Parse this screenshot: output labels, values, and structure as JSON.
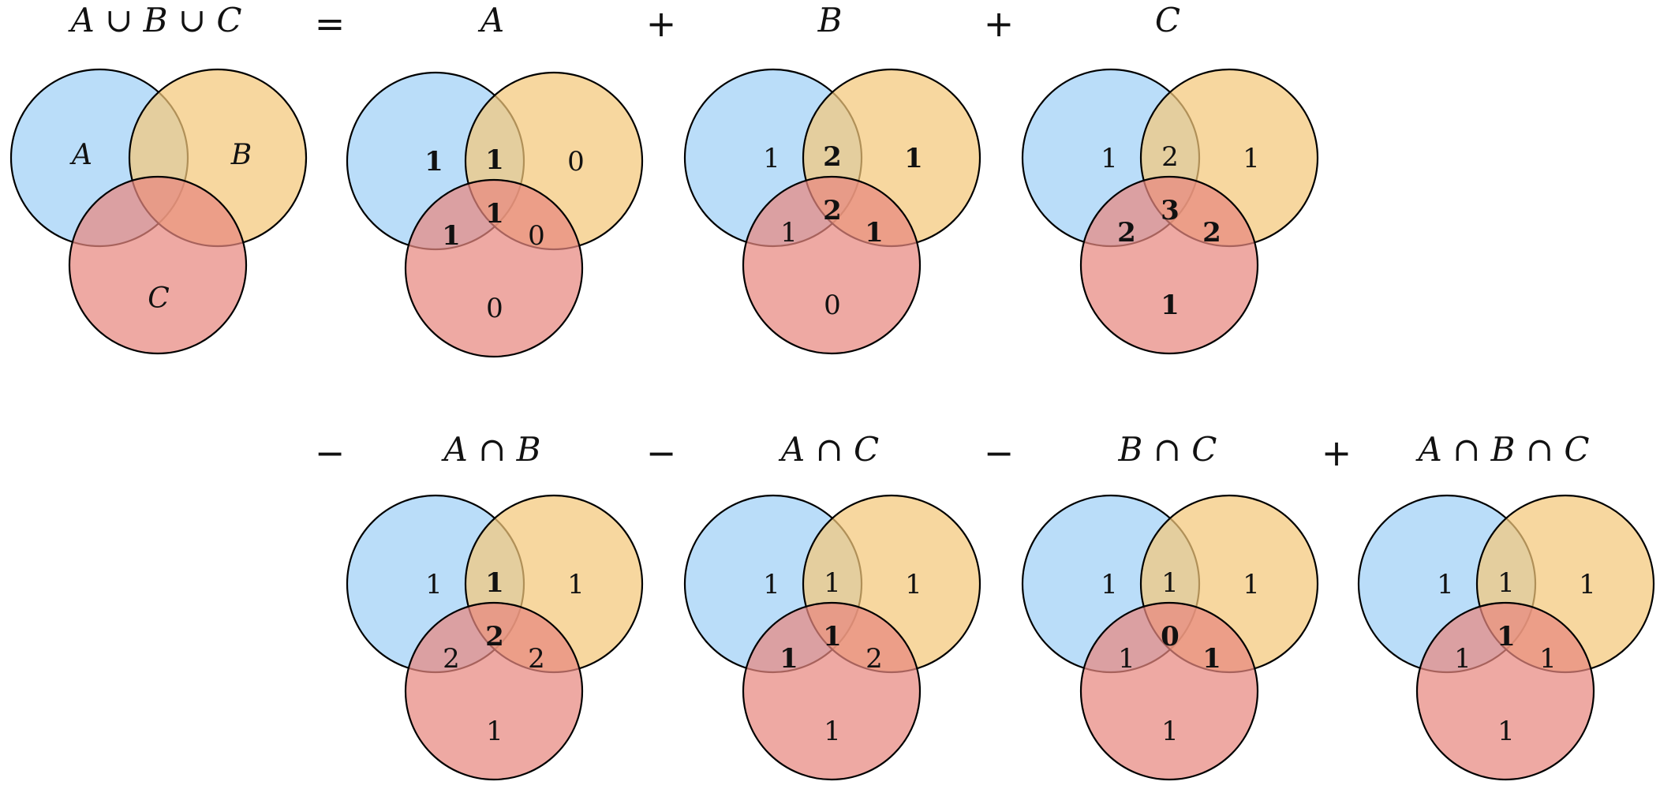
{
  "colors": {
    "circle_a": "#9fd0f6",
    "circle_b": "#f4c77a",
    "circle_c": "#e88880",
    "stroke": "#000000"
  },
  "operators": [
    "=",
    "+",
    "+",
    "−",
    "−",
    "−",
    "+"
  ],
  "diagrams": [
    {
      "title": "A ∪ B ∪ C",
      "labels": {
        "a": "A",
        "b": "B",
        "c": "C"
      }
    },
    {
      "title": "A",
      "regions": {
        "a": {
          "v": "1",
          "bold": true
        },
        "ab": {
          "v": "1",
          "bold": true
        },
        "b": {
          "v": "0",
          "bold": false
        },
        "ac": {
          "v": "1",
          "bold": true
        },
        "abc": {
          "v": "1",
          "bold": true
        },
        "bc": {
          "v": "0",
          "bold": false
        },
        "c": {
          "v": "0",
          "bold": false
        }
      }
    },
    {
      "title": "B",
      "regions": {
        "a": {
          "v": "1",
          "bold": false
        },
        "ab": {
          "v": "2",
          "bold": true
        },
        "b": {
          "v": "1",
          "bold": true
        },
        "ac": {
          "v": "1",
          "bold": false
        },
        "abc": {
          "v": "2",
          "bold": true
        },
        "bc": {
          "v": "1",
          "bold": true
        },
        "c": {
          "v": "0",
          "bold": false
        }
      }
    },
    {
      "title": "C",
      "regions": {
        "a": {
          "v": "1",
          "bold": false
        },
        "ab": {
          "v": "2",
          "bold": false
        },
        "b": {
          "v": "1",
          "bold": false
        },
        "ac": {
          "v": "2",
          "bold": true
        },
        "abc": {
          "v": "3",
          "bold": true
        },
        "bc": {
          "v": "2",
          "bold": true
        },
        "c": {
          "v": "1",
          "bold": true
        }
      }
    },
    {
      "title": "A ∩ B",
      "regions": {
        "a": {
          "v": "1",
          "bold": false
        },
        "ab": {
          "v": "1",
          "bold": true
        },
        "b": {
          "v": "1",
          "bold": false
        },
        "ac": {
          "v": "2",
          "bold": false
        },
        "abc": {
          "v": "2",
          "bold": true
        },
        "bc": {
          "v": "2",
          "bold": false
        },
        "c": {
          "v": "1",
          "bold": false
        }
      }
    },
    {
      "title": "A ∩ C",
      "regions": {
        "a": {
          "v": "1",
          "bold": false
        },
        "ab": {
          "v": "1",
          "bold": false
        },
        "b": {
          "v": "1",
          "bold": false
        },
        "ac": {
          "v": "1",
          "bold": true
        },
        "abc": {
          "v": "1",
          "bold": true
        },
        "bc": {
          "v": "2",
          "bold": false
        },
        "c": {
          "v": "1",
          "bold": false
        }
      }
    },
    {
      "title": "B ∩ C",
      "regions": {
        "a": {
          "v": "1",
          "bold": false
        },
        "ab": {
          "v": "1",
          "bold": false
        },
        "b": {
          "v": "1",
          "bold": false
        },
        "ac": {
          "v": "1",
          "bold": false
        },
        "abc": {
          "v": "0",
          "bold": true
        },
        "bc": {
          "v": "1",
          "bold": true
        },
        "c": {
          "v": "1",
          "bold": false
        }
      }
    },
    {
      "title": "A ∩ B ∩ C",
      "regions": {
        "a": {
          "v": "1",
          "bold": false
        },
        "ab": {
          "v": "1",
          "bold": false
        },
        "b": {
          "v": "1",
          "bold": false
        },
        "ac": {
          "v": "1",
          "bold": false
        },
        "abc": {
          "v": "1",
          "bold": true
        },
        "bc": {
          "v": "1",
          "bold": false
        },
        "c": {
          "v": "1",
          "bold": false
        }
      }
    }
  ]
}
